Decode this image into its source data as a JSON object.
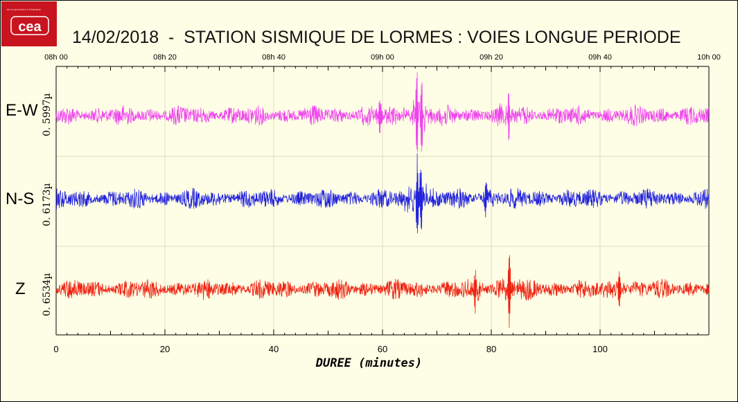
{
  "logo": {
    "text": "cea",
    "tagline": "de la recherche à l'industrie"
  },
  "header": {
    "title": "14/02/2018  -  STATION SISMIQUE DE LORMES : VOIES LONGUE PERIODE"
  },
  "chart_data": {
    "type": "line",
    "title": "14/02/2018  -  STATION SISMIQUE DE LORMES : VOIES LONGUE PERIODE",
    "xlabel": "DUREE (minutes)",
    "xlim": [
      0,
      120
    ],
    "x_ticks": [
      0,
      20,
      40,
      60,
      80,
      100
    ],
    "top_ticks": [
      "08h 00",
      "08h 20",
      "08h 40",
      "09h 00",
      "09h 20",
      "09h 40",
      "10h 00"
    ],
    "grid": true,
    "series": [
      {
        "name": "E-W",
        "scale": "0. 5997µ",
        "color": "#ee44ee",
        "events": [
          {
            "t_min": 59.5,
            "amp": 0.45
          },
          {
            "t_min": 66.3,
            "amp": 1.0
          },
          {
            "t_min": 67.2,
            "amp": 0.9
          },
          {
            "t_min": 83.2,
            "amp": 0.5
          }
        ]
      },
      {
        "name": "N-S",
        "scale": "0. 6173µ",
        "color": "#2222dd",
        "events": [
          {
            "t_min": 66.4,
            "amp": 1.0
          },
          {
            "t_min": 67.1,
            "amp": 0.85
          },
          {
            "t_min": 79.0,
            "amp": 0.45
          }
        ]
      },
      {
        "name": "Z",
        "scale": "0. 6534µ",
        "color": "#ee2211",
        "events": [
          {
            "t_min": 83.3,
            "amp": 1.0
          },
          {
            "t_min": 77.0,
            "amp": 0.45
          },
          {
            "t_min": 103.5,
            "amp": 0.45
          }
        ]
      }
    ]
  }
}
